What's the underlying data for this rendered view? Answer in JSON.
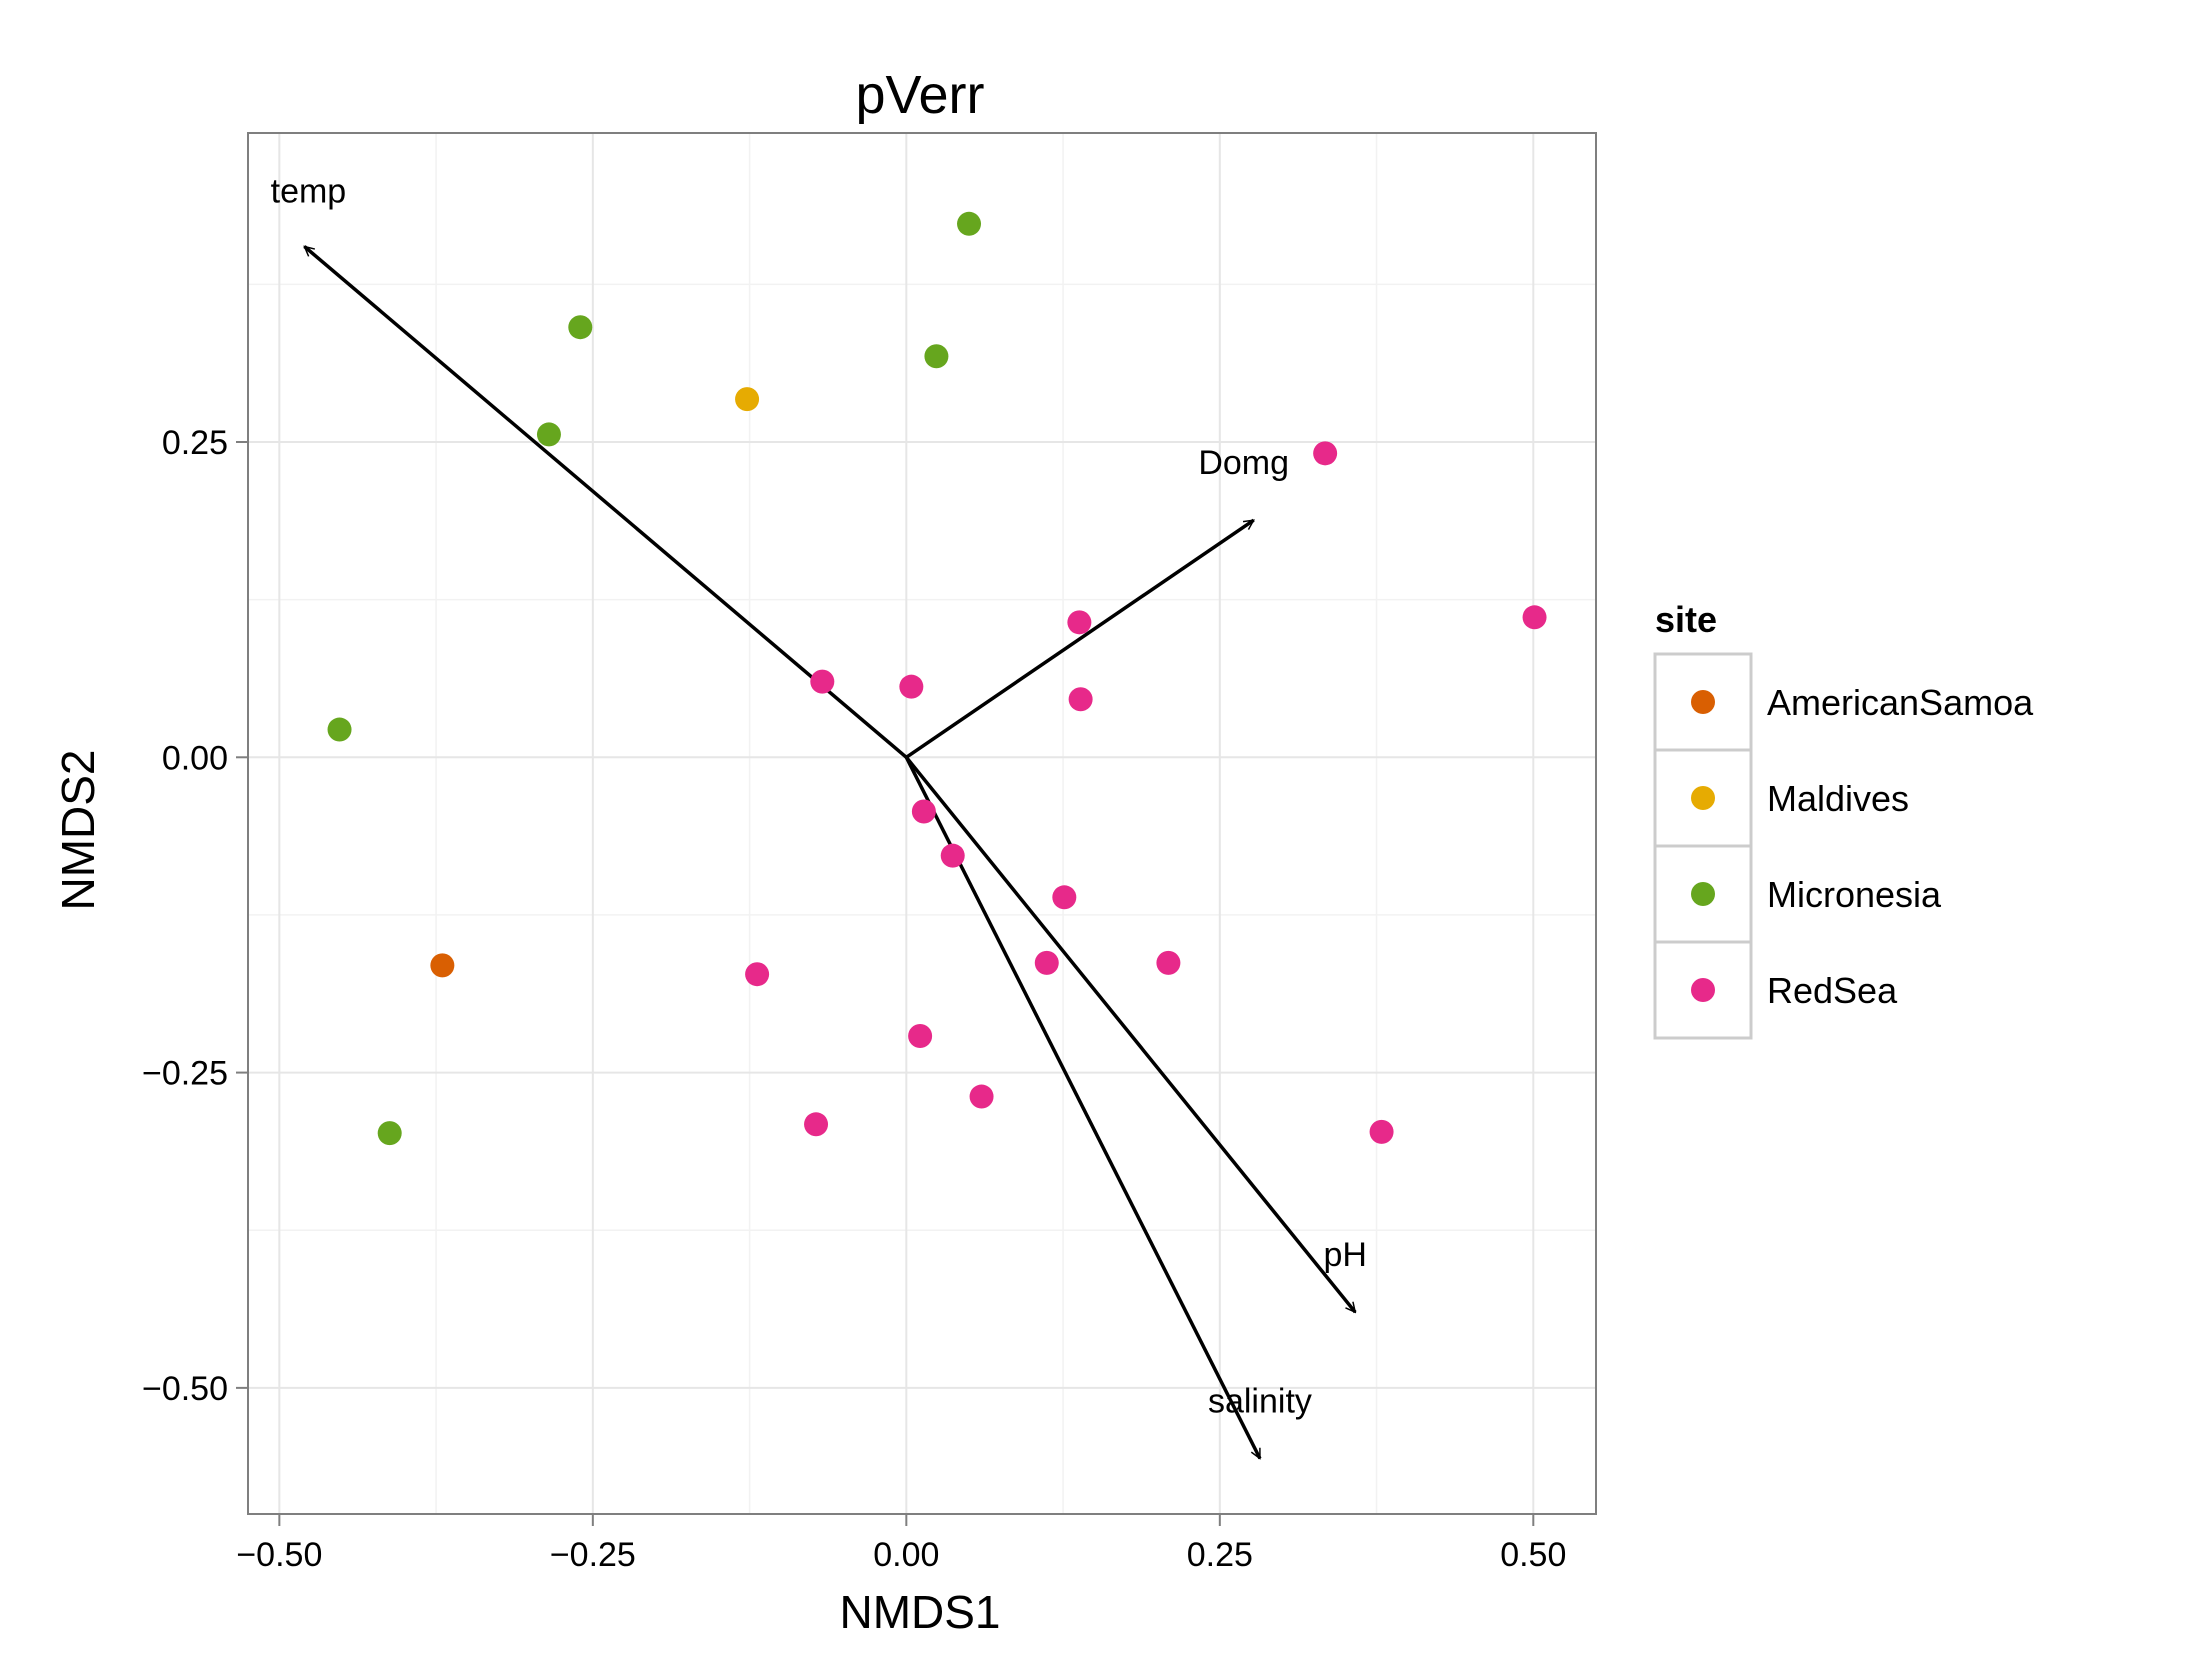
{
  "chart_data": {
    "type": "scatter",
    "title": "pVerr",
    "xlabel": "NMDS1",
    "ylabel": "NMDS2",
    "xlim": [
      -0.525,
      0.55
    ],
    "ylim": [
      -0.6,
      0.495
    ],
    "x_ticks": [
      -0.5,
      -0.25,
      0.0,
      0.25,
      0.5
    ],
    "x_tick_labels": [
      "−0.50",
      "−0.25",
      "0.00",
      "0.25",
      "0.50"
    ],
    "y_ticks": [
      -0.5,
      -0.25,
      0.0,
      0.25
    ],
    "y_tick_labels": [
      "−0.50",
      "−0.25",
      "0.00",
      "0.25"
    ],
    "grid": true,
    "legend": {
      "title": "site",
      "position": "right",
      "entries": [
        {
          "name": "AmericanSamoa",
          "color": "#D95F02"
        },
        {
          "name": "Maldives",
          "color": "#E6AB02"
        },
        {
          "name": "Micronesia",
          "color": "#66A61E"
        },
        {
          "name": "RedSea",
          "color": "#E7298A"
        }
      ]
    },
    "series": [
      {
        "name": "AmericanSamoa",
        "color": "#D95F02",
        "points": [
          [
            -0.37,
            -0.165
          ]
        ]
      },
      {
        "name": "Maldives",
        "color": "#E6AB02",
        "points": [
          [
            -0.127,
            0.284
          ]
        ]
      },
      {
        "name": "Micronesia",
        "color": "#66A61E",
        "points": [
          [
            0.05,
            0.423
          ],
          [
            -0.26,
            0.341
          ],
          [
            0.024,
            0.318
          ],
          [
            -0.285,
            0.256
          ],
          [
            -0.452,
            0.022
          ],
          [
            -0.412,
            -0.298
          ]
        ]
      },
      {
        "name": "RedSea",
        "color": "#E7298A",
        "points": [
          [
            0.334,
            0.241
          ],
          [
            0.501,
            0.111
          ],
          [
            0.138,
            0.107
          ],
          [
            -0.067,
            0.06
          ],
          [
            0.004,
            0.056
          ],
          [
            0.139,
            0.046
          ],
          [
            0.014,
            -0.043
          ],
          [
            0.037,
            -0.078
          ],
          [
            0.126,
            -0.111
          ],
          [
            -0.119,
            -0.172
          ],
          [
            0.112,
            -0.163
          ],
          [
            0.209,
            -0.163
          ],
          [
            0.011,
            -0.221
          ],
          [
            0.06,
            -0.269
          ],
          [
            -0.072,
            -0.291
          ],
          [
            0.379,
            -0.297
          ]
        ]
      }
    ],
    "vectors": [
      {
        "label": "temp",
        "x": -0.48,
        "y": 0.405
      },
      {
        "label": "Domg",
        "x": 0.277,
        "y": 0.188
      },
      {
        "label": "pH",
        "x": 0.358,
        "y": -0.44
      },
      {
        "label": "salinity",
        "x": 0.282,
        "y": -0.556
      }
    ]
  }
}
